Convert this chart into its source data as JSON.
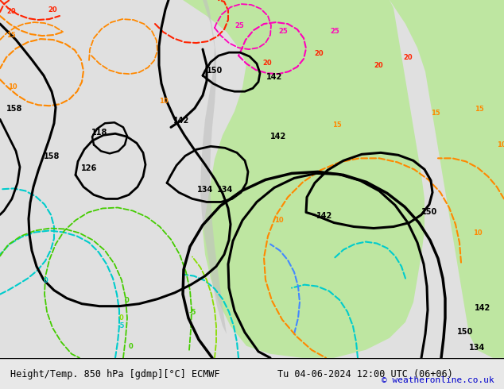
{
  "title_left": "Height/Temp. 850 hPa [gdmp][°C] ECMWF",
  "title_right": "Tu 04-06-2024 12:00 UTC (06+06)",
  "credit": "© weatheronline.co.uk",
  "bg_color": "#e8e8e8",
  "map_bg": "#f0f0f0",
  "green_fill": "#b8e896",
  "title_fontsize": 9,
  "credit_color": "#0000cc",
  "text_color": "#000000"
}
